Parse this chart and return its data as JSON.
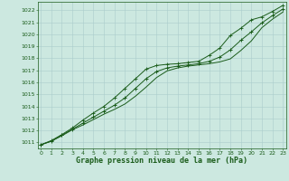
{
  "title": "Graphe pression niveau de la mer (hPa)",
  "background_color": "#cce8e0",
  "grid_color": "#aacccc",
  "line_color": "#1a5c1a",
  "xlim": [
    -0.3,
    23.3
  ],
  "ylim": [
    1010.5,
    1022.7
  ],
  "yticks": [
    1011,
    1012,
    1013,
    1014,
    1015,
    1016,
    1017,
    1018,
    1019,
    1020,
    1021,
    1022
  ],
  "xticks": [
    0,
    1,
    2,
    3,
    4,
    5,
    6,
    7,
    8,
    9,
    10,
    11,
    12,
    13,
    14,
    15,
    16,
    17,
    18,
    19,
    20,
    21,
    22,
    23
  ],
  "x": [
    0,
    1,
    2,
    3,
    4,
    5,
    6,
    7,
    8,
    9,
    10,
    11,
    12,
    13,
    14,
    15,
    16,
    17,
    18,
    19,
    20,
    21,
    22,
    23
  ],
  "y_mean": [
    1010.8,
    1011.1,
    1011.6,
    1012.1,
    1012.6,
    1013.1,
    1013.6,
    1014.1,
    1014.7,
    1015.5,
    1016.3,
    1016.9,
    1017.2,
    1017.35,
    1017.45,
    1017.55,
    1017.75,
    1018.1,
    1018.7,
    1019.5,
    1020.2,
    1020.95,
    1021.55,
    1022.1
  ],
  "y_high": [
    1010.8,
    1011.15,
    1011.65,
    1012.2,
    1012.85,
    1013.45,
    1014.0,
    1014.7,
    1015.5,
    1016.3,
    1017.1,
    1017.4,
    1017.5,
    1017.55,
    1017.65,
    1017.75,
    1018.25,
    1018.85,
    1019.9,
    1020.5,
    1021.2,
    1021.45,
    1021.9,
    1022.4
  ],
  "y_low": [
    1010.8,
    1011.1,
    1011.55,
    1012.05,
    1012.45,
    1012.9,
    1013.35,
    1013.75,
    1014.2,
    1014.85,
    1015.6,
    1016.4,
    1016.95,
    1017.2,
    1017.35,
    1017.45,
    1017.55,
    1017.7,
    1017.95,
    1018.65,
    1019.45,
    1020.55,
    1021.25,
    1021.85
  ],
  "tick_fontsize": 4.5,
  "label_fontsize": 6.0
}
